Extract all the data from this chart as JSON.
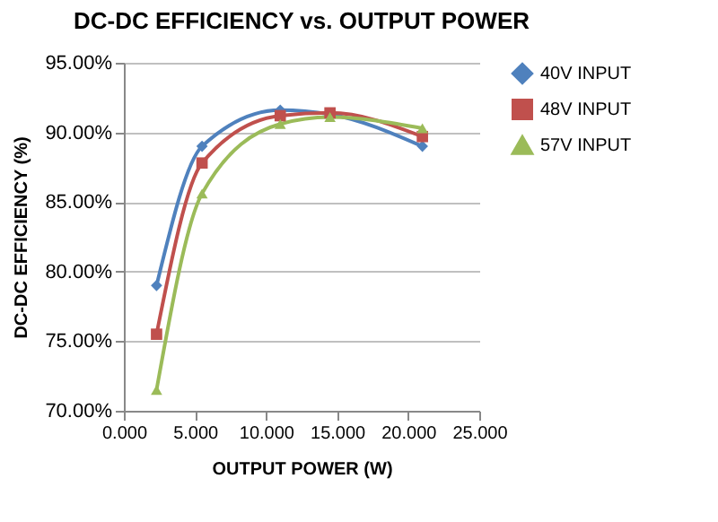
{
  "chart_data": {
    "type": "line",
    "title": "DC-DC EFFICIENCY vs. OUTPUT POWER",
    "xlabel": "OUTPUT POWER (W)",
    "ylabel": "DC-DC EFFICIENCY (%)",
    "x": [
      2.3,
      5.5,
      11,
      14.5,
      21
    ],
    "series": [
      {
        "name": "40V INPUT",
        "color": "#4f81bd",
        "marker": "diamond",
        "values": [
          79,
          89,
          91.6,
          91.3,
          89
        ]
      },
      {
        "name": "48V INPUT",
        "color": "#c0504d",
        "marker": "square",
        "values": [
          75.5,
          87.8,
          91.2,
          91.4,
          89.7
        ]
      },
      {
        "name": "57V INPUT",
        "color": "#9bbb59",
        "marker": "triangle",
        "values": [
          71.5,
          85.6,
          90.6,
          91.1,
          90.3
        ]
      }
    ],
    "xlim": [
      0,
      25
    ],
    "xticks": [
      {
        "value": 0,
        "label": "0.000"
      },
      {
        "value": 5,
        "label": "5.000"
      },
      {
        "value": 10,
        "label": "10.000"
      },
      {
        "value": 15,
        "label": "15.000"
      },
      {
        "value": 20,
        "label": "20.000"
      },
      {
        "value": 25,
        "label": "25.000"
      }
    ],
    "ylim": [
      70,
      95
    ],
    "yticks": [
      {
        "value": 70,
        "label": "70.00%"
      },
      {
        "value": 75,
        "label": "75.00%"
      },
      {
        "value": 80,
        "label": "80.00%"
      },
      {
        "value": 85,
        "label": "85.00%"
      },
      {
        "value": 90,
        "label": "90.00%"
      },
      {
        "value": 95,
        "label": "95.00%"
      }
    ],
    "grid": "y",
    "legend": "right",
    "line_style": "solid"
  }
}
